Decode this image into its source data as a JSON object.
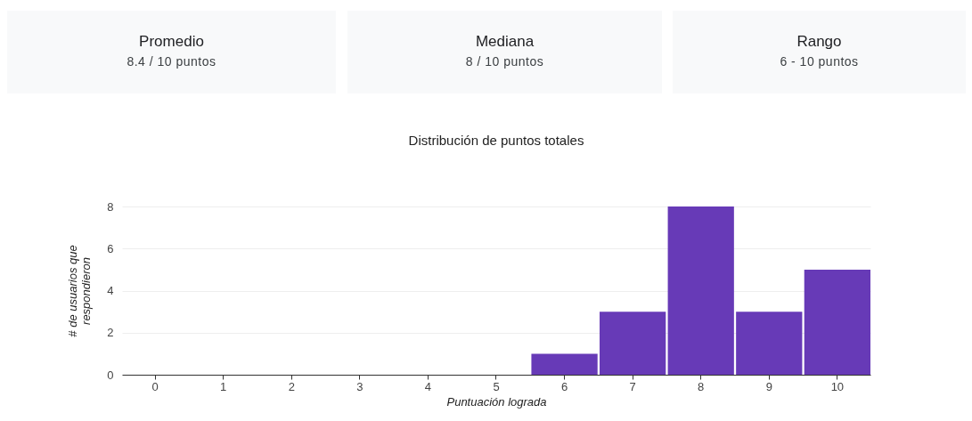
{
  "chart_data": [
    {
      "type": "other",
      "annotations": [
        "Promedio",
        "8.4 / 10 puntos",
        "Mediana",
        "8 / 10 puntos",
        "Rango",
        "6 - 10 puntos"
      ]
    },
    {
      "type": "bar",
      "title": "Distribución de puntos totales",
      "xlabel": "Puntuación lograda",
      "ylabel": "# de usuarios que respondieron",
      "categories": [
        "0",
        "1",
        "2",
        "3",
        "4",
        "5",
        "6",
        "7",
        "8",
        "9",
        "10"
      ],
      "values": [
        0,
        0,
        0,
        0,
        0,
        0,
        1,
        3,
        8,
        3,
        5
      ],
      "color": "#673ab7",
      "ylim": [
        0,
        8
      ],
      "yticks": [
        0,
        2,
        4,
        6,
        8
      ],
      "grid": "y"
    }
  ]
}
